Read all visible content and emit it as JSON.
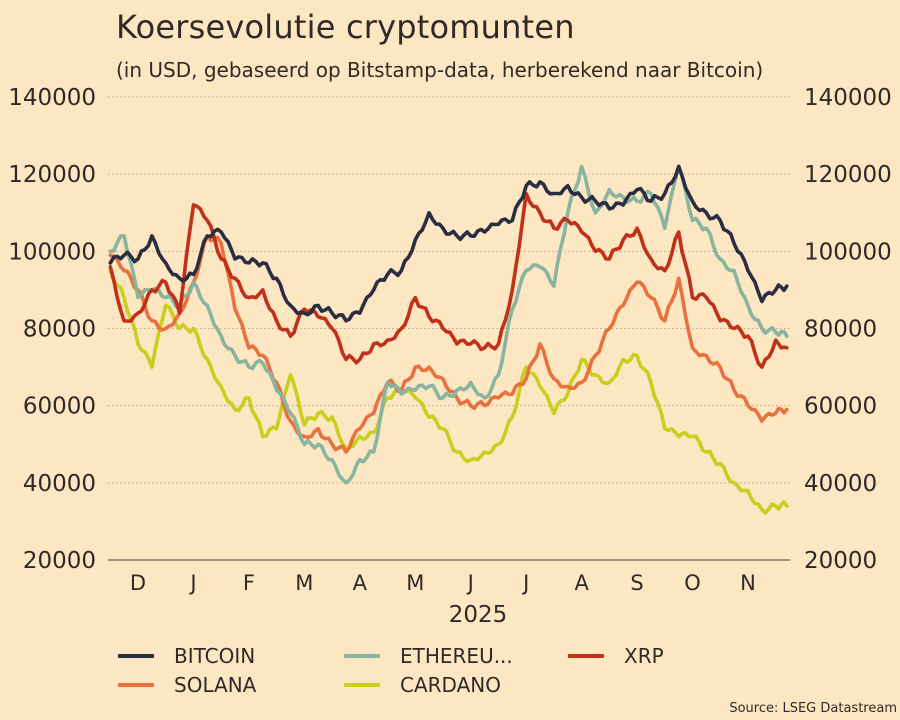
{
  "title": "Koersevolutie cryptomunten",
  "subtitle": "(in USD, gebaseerd op Bitstamp-data, herberekend naar Bitcoin)",
  "source": "Source: LSEG Datastream",
  "chart_data": {
    "type": "line",
    "title": "Koersevolutie cryptomunten",
    "subtitle": "(in USD, gebaseerd op Bitstamp-data, herberekend naar Bitcoin)",
    "xlabel": "2025",
    "ylabel": "",
    "ylim": [
      20000,
      140000
    ],
    "yticks": [
      140000,
      120000,
      100000,
      80000,
      60000,
      40000,
      20000
    ],
    "ytick_labels": [
      "140000",
      "120000",
      "100000",
      "80000",
      "60000",
      "40000",
      "20000"
    ],
    "y_axis_sides": [
      "left",
      "right"
    ],
    "xtick_labels": [
      "D",
      "J",
      "F",
      "M",
      "A",
      "M",
      "J",
      "J",
      "A",
      "S",
      "O",
      "N"
    ],
    "x_range_months": [
      -0.5,
      11.7
    ],
    "grid": "horizontal-dotted",
    "legend_position": "bottom",
    "x_month_index": [
      -0.5,
      -0.25,
      0,
      0.25,
      0.5,
      0.75,
      1,
      1.25,
      1.5,
      1.75,
      2,
      2.25,
      2.5,
      2.75,
      3,
      3.25,
      3.5,
      3.75,
      4,
      4.25,
      4.5,
      4.75,
      5,
      5.25,
      5.5,
      5.75,
      6,
      6.25,
      6.5,
      6.75,
      7,
      7.25,
      7.5,
      7.75,
      8,
      8.25,
      8.5,
      8.75,
      9,
      9.25,
      9.5,
      9.75,
      10,
      10.25,
      10.5,
      10.75,
      11,
      11.25,
      11.5,
      11.7
    ],
    "series": [
      {
        "name": "BITCOIN",
        "color": "#2b2d42",
        "values": [
          97000,
          99000,
          98000,
          104000,
          97000,
          93000,
          94000,
          104000,
          105000,
          98000,
          97000,
          97000,
          93000,
          86000,
          84000,
          86000,
          84000,
          82000,
          84000,
          90000,
          94000,
          95000,
          103000,
          110000,
          106000,
          104000,
          104000,
          105000,
          107000,
          108000,
          117000,
          118000,
          115000,
          117000,
          114000,
          113000,
          111000,
          112000,
          116000,
          113000,
          115000,
          122000,
          113000,
          110000,
          108000,
          102000,
          95000,
          87000,
          90000,
          91000
        ]
      },
      {
        "name": "ETHEREU...",
        "color": "#88b4a0",
        "values": [
          100000,
          104000,
          88000,
          90000,
          88000,
          86000,
          92000,
          86000,
          78000,
          73000,
          70000,
          71000,
          64000,
          58000,
          50000,
          50000,
          46000,
          40000,
          46000,
          48000,
          66000,
          63000,
          64000,
          65000,
          62000,
          64000,
          66000,
          62000,
          68000,
          85000,
          95000,
          96000,
          91000,
          110000,
          122000,
          110000,
          116000,
          114000,
          113000,
          115000,
          106000,
          122000,
          108000,
          106000,
          98000,
          95000,
          86000,
          80000,
          79000,
          78000
        ]
      },
      {
        "name": "XRP",
        "color": "#c0301a",
        "values": [
          96000,
          82000,
          84000,
          90000,
          92000,
          84000,
          112000,
          108000,
          98000,
          93000,
          88000,
          90000,
          82000,
          78000,
          85000,
          83000,
          80000,
          72000,
          72000,
          76000,
          77000,
          80000,
          88000,
          83000,
          80000,
          76000,
          76000,
          75000,
          76000,
          90000,
          115000,
          110000,
          106000,
          108000,
          105000,
          100000,
          98000,
          103000,
          106000,
          98000,
          95000,
          105000,
          88000,
          88000,
          82000,
          80000,
          78000,
          70000,
          77000,
          75000
        ]
      },
      {
        "name": "SOLANA",
        "color": "#e8723f",
        "values": [
          99000,
          95000,
          90000,
          82000,
          80000,
          84000,
          92000,
          104000,
          102000,
          85000,
          75000,
          73000,
          66000,
          56000,
          52000,
          54000,
          50000,
          48000,
          54000,
          58000,
          66000,
          64000,
          70000,
          70000,
          67000,
          62000,
          60000,
          60000,
          62000,
          63000,
          67000,
          76000,
          67000,
          65000,
          66000,
          73000,
          80000,
          86000,
          92000,
          88000,
          82000,
          93000,
          75000,
          73000,
          70000,
          64000,
          60000,
          56000,
          58000,
          59000
        ]
      },
      {
        "name": "CARDANO",
        "color": "#c9cf1c",
        "values": [
          95000,
          88000,
          76000,
          70000,
          86000,
          80000,
          80000,
          72000,
          65000,
          59000,
          62000,
          52000,
          54000,
          68000,
          55000,
          58000,
          57000,
          49000,
          52000,
          53000,
          62000,
          64000,
          62000,
          57000,
          54000,
          48000,
          46000,
          48000,
          50000,
          57000,
          70000,
          65000,
          58000,
          63000,
          72000,
          68000,
          66000,
          72000,
          73000,
          66000,
          54000,
          52000,
          52000,
          48000,
          45000,
          40000,
          38000,
          33000,
          34000,
          34000
        ]
      }
    ]
  },
  "legend": {
    "items": [
      {
        "label": "BITCOIN",
        "color": "#2b2d42"
      },
      {
        "label": "ETHEREU...",
        "color": "#88b4a0"
      },
      {
        "label": "XRP",
        "color": "#c0301a"
      },
      {
        "label": "SOLANA",
        "color": "#e8723f"
      },
      {
        "label": "CARDANO",
        "color": "#c9cf1c"
      }
    ]
  }
}
